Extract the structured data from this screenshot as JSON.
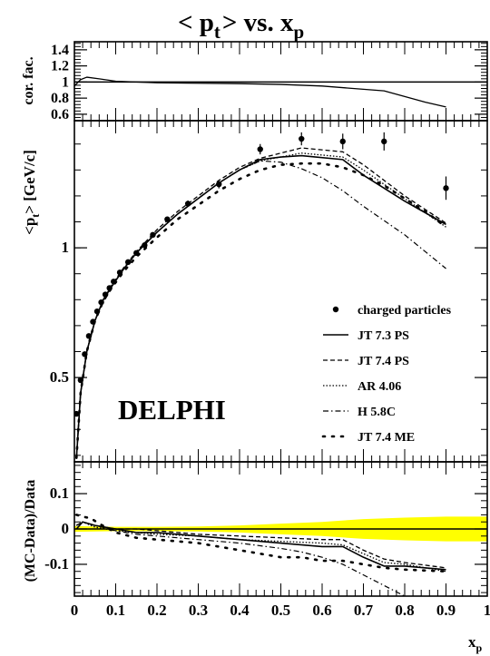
{
  "chart_data": [
    {
      "panel": "correction-factor",
      "type": "line",
      "title_main": "< p",
      "title_sub1": "t",
      "title_mid": "> vs. x",
      "title_sub2": "p",
      "ylabel": "cor. fac.",
      "ylim": [
        0.52,
        1.5
      ],
      "yticks": [
        "1.4",
        "1.2",
        "1",
        "0.8",
        "0.6"
      ],
      "ytick_values": [
        1.4,
        1.2,
        1.0,
        0.8,
        0.6
      ],
      "xlim": [
        0,
        1
      ],
      "reference_line": 1.0,
      "series": [
        {
          "x": [
            0.0,
            0.015,
            0.03,
            0.06,
            0.1,
            0.2,
            0.3,
            0.4,
            0.5,
            0.6,
            0.7,
            0.75,
            0.8,
            0.85,
            0.9
          ],
          "y": [
            0.95,
            1.03,
            1.06,
            1.04,
            1.01,
            0.99,
            0.985,
            0.98,
            0.97,
            0.95,
            0.91,
            0.89,
            0.82,
            0.75,
            0.69
          ]
        }
      ]
    },
    {
      "panel": "mean-pt",
      "type": "line",
      "ylabel_pre": "<p",
      "ylabel_sub": "t",
      "ylabel_post": "> [GeV/c]",
      "ylim": [
        0.175,
        1.49
      ],
      "yticks": [
        "1",
        "0.5"
      ],
      "ytick_values": [
        1.0,
        0.5
      ],
      "xlim": [
        0,
        1
      ],
      "watermark": "DELPHI",
      "data_points": {
        "name": "charged particles",
        "x": [
          0.005,
          0.015,
          0.025,
          0.035,
          0.045,
          0.055,
          0.065,
          0.075,
          0.085,
          0.095,
          0.11,
          0.13,
          0.15,
          0.17,
          0.19,
          0.225,
          0.275,
          0.35,
          0.45,
          0.55,
          0.65,
          0.75,
          0.9
        ],
        "y": [
          0.36,
          0.49,
          0.59,
          0.66,
          0.715,
          0.755,
          0.79,
          0.82,
          0.845,
          0.87,
          0.905,
          0.945,
          0.98,
          1.01,
          1.05,
          1.11,
          1.17,
          1.245,
          1.38,
          1.42,
          1.41,
          1.41,
          1.23
        ],
        "yerr": [
          0.006,
          0.006,
          0.006,
          0.006,
          0.006,
          0.006,
          0.006,
          0.006,
          0.006,
          0.006,
          0.006,
          0.007,
          0.007,
          0.008,
          0.009,
          0.01,
          0.012,
          0.016,
          0.02,
          0.025,
          0.03,
          0.035,
          0.045
        ]
      },
      "series": [
        {
          "name": "JT 7.3 PS",
          "x": [
            0.005,
            0.015,
            0.03,
            0.05,
            0.07,
            0.09,
            0.12,
            0.15,
            0.2,
            0.25,
            0.3,
            0.35,
            0.4,
            0.45,
            0.5,
            0.55,
            0.65,
            0.7,
            0.8,
            0.9
          ],
          "y": [
            0.19,
            0.44,
            0.6,
            0.72,
            0.8,
            0.85,
            0.92,
            0.98,
            1.06,
            1.13,
            1.19,
            1.25,
            1.3,
            1.34,
            1.35,
            1.355,
            1.34,
            1.28,
            1.18,
            1.09
          ]
        },
        {
          "name": "JT 7.4 PS",
          "x": [
            0.005,
            0.015,
            0.03,
            0.05,
            0.07,
            0.09,
            0.12,
            0.15,
            0.2,
            0.25,
            0.3,
            0.35,
            0.4,
            0.45,
            0.5,
            0.55,
            0.65,
            0.7,
            0.8,
            0.9
          ],
          "y": [
            0.19,
            0.44,
            0.6,
            0.72,
            0.8,
            0.855,
            0.925,
            0.985,
            1.07,
            1.14,
            1.2,
            1.26,
            1.31,
            1.345,
            1.365,
            1.385,
            1.37,
            1.32,
            1.2,
            1.095
          ]
        },
        {
          "name": "AR 4.06",
          "x": [
            0.005,
            0.015,
            0.03,
            0.05,
            0.07,
            0.09,
            0.12,
            0.15,
            0.2,
            0.25,
            0.3,
            0.35,
            0.4,
            0.45,
            0.5,
            0.55,
            0.65,
            0.7,
            0.8,
            0.9
          ],
          "y": [
            0.19,
            0.44,
            0.6,
            0.72,
            0.8,
            0.85,
            0.92,
            0.98,
            1.06,
            1.13,
            1.19,
            1.25,
            1.3,
            1.335,
            1.35,
            1.365,
            1.35,
            1.3,
            1.19,
            1.08
          ]
        },
        {
          "name": "H 5.8C",
          "x": [
            0.005,
            0.015,
            0.03,
            0.05,
            0.07,
            0.09,
            0.12,
            0.15,
            0.2,
            0.25,
            0.3,
            0.35,
            0.4,
            0.45,
            0.5,
            0.55,
            0.6,
            0.65,
            0.7,
            0.8,
            0.9
          ],
          "y": [
            0.19,
            0.44,
            0.6,
            0.72,
            0.8,
            0.85,
            0.92,
            0.98,
            1.06,
            1.13,
            1.19,
            1.25,
            1.3,
            1.335,
            1.33,
            1.305,
            1.27,
            1.22,
            1.16,
            1.05,
            0.92
          ]
        },
        {
          "name": "JT 7.4 ME",
          "x": [
            0.005,
            0.015,
            0.03,
            0.05,
            0.07,
            0.09,
            0.12,
            0.15,
            0.2,
            0.25,
            0.3,
            0.35,
            0.4,
            0.45,
            0.5,
            0.55,
            0.6,
            0.65,
            0.7,
            0.75,
            0.8,
            0.85,
            0.9
          ],
          "y": [
            0.19,
            0.44,
            0.6,
            0.72,
            0.795,
            0.845,
            0.91,
            0.965,
            1.04,
            1.11,
            1.165,
            1.22,
            1.265,
            1.3,
            1.32,
            1.325,
            1.325,
            1.31,
            1.28,
            1.24,
            1.19,
            1.14,
            1.08
          ]
        }
      ],
      "legend": [
        "charged particles",
        "JT 7.3 PS",
        "JT 7.4 PS",
        "AR 4.06",
        "H 5.8C",
        "JT 7.4 ME"
      ],
      "legend_position": "bottom-right"
    },
    {
      "panel": "ratio",
      "type": "line",
      "ylabel": "(MC-Data)/Data",
      "ylim": [
        -0.19,
        0.19
      ],
      "yticks": [
        "0.1",
        "0",
        "-0.1"
      ],
      "ytick_values": [
        0.1,
        0.0,
        -0.1
      ],
      "xlim": [
        0,
        1
      ],
      "xlabel": "x",
      "xlabel_sub": "p",
      "xticks": [
        "0",
        "0.1",
        "0.2",
        "0.3",
        "0.4",
        "0.5",
        "0.6",
        "0.7",
        "0.8",
        "0.9",
        "1"
      ],
      "xtick_values": [
        0,
        0.1,
        0.2,
        0.3,
        0.4,
        0.5,
        0.6,
        0.7,
        0.8,
        0.9,
        1.0
      ],
      "band_color": "#ffff00",
      "band": {
        "x": [
          0.0,
          0.1,
          0.2,
          0.3,
          0.4,
          0.5,
          0.6,
          0.7,
          0.8,
          0.9,
          1.0
        ],
        "half_width": [
          0.008,
          0.006,
          0.006,
          0.007,
          0.01,
          0.015,
          0.02,
          0.028,
          0.032,
          0.035,
          0.035
        ]
      },
      "series": [
        {
          "name": "JT 7.3 PS",
          "x": [
            0.005,
            0.02,
            0.05,
            0.1,
            0.15,
            0.2,
            0.3,
            0.4,
            0.5,
            0.6,
            0.65,
            0.7,
            0.75,
            0.8,
            0.9
          ],
          "y": [
            0.0,
            0.02,
            0.01,
            0.0,
            -0.01,
            -0.01,
            -0.02,
            -0.03,
            -0.04,
            -0.05,
            -0.05,
            -0.08,
            -0.105,
            -0.105,
            -0.115
          ]
        },
        {
          "name": "JT 7.4 PS",
          "x": [
            0.005,
            0.02,
            0.05,
            0.1,
            0.15,
            0.2,
            0.3,
            0.4,
            0.5,
            0.6,
            0.65,
            0.7,
            0.75,
            0.8,
            0.9
          ],
          "y": [
            0.01,
            0.02,
            0.01,
            0.0,
            0.0,
            -0.005,
            -0.015,
            -0.02,
            -0.025,
            -0.03,
            -0.03,
            -0.06,
            -0.085,
            -0.095,
            -0.11
          ]
        },
        {
          "name": "AR 4.06",
          "x": [
            0.005,
            0.02,
            0.05,
            0.1,
            0.15,
            0.2,
            0.3,
            0.4,
            0.5,
            0.6,
            0.65,
            0.7,
            0.75,
            0.8,
            0.9
          ],
          "y": [
            0.01,
            0.02,
            0.005,
            -0.005,
            -0.01,
            -0.015,
            -0.02,
            -0.03,
            -0.035,
            -0.04,
            -0.045,
            -0.07,
            -0.095,
            -0.1,
            -0.12
          ]
        },
        {
          "name": "H 5.8C",
          "x": [
            0.005,
            0.02,
            0.05,
            0.1,
            0.15,
            0.2,
            0.3,
            0.4,
            0.5,
            0.55,
            0.6,
            0.65,
            0.7,
            0.75,
            0.8
          ],
          "y": [
            0.01,
            0.02,
            0.01,
            -0.005,
            -0.015,
            -0.02,
            -0.03,
            -0.04,
            -0.055,
            -0.065,
            -0.08,
            -0.1,
            -0.13,
            -0.16,
            -0.19
          ]
        },
        {
          "name": "JT 7.4 ME",
          "x": [
            0.005,
            0.02,
            0.04,
            0.06,
            0.1,
            0.15,
            0.2,
            0.3,
            0.4,
            0.5,
            0.55,
            0.6,
            0.65,
            0.7,
            0.75,
            0.8,
            0.9
          ],
          "y": [
            0.04,
            0.035,
            0.03,
            0.015,
            -0.01,
            -0.025,
            -0.03,
            -0.04,
            -0.06,
            -0.08,
            -0.08,
            -0.09,
            -0.09,
            -0.1,
            -0.11,
            -0.115,
            -0.12
          ]
        }
      ]
    }
  ]
}
